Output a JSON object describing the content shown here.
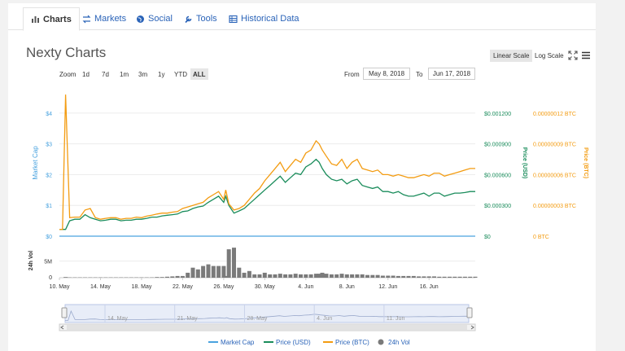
{
  "tabs": [
    {
      "label": "Charts",
      "icon": "bar-chart-icon",
      "active": true
    },
    {
      "label": "Markets",
      "icon": "exchange-arrows-icon",
      "active": false
    },
    {
      "label": "Social",
      "icon": "globe-icon",
      "active": false
    },
    {
      "label": "Tools",
      "icon": "wrench-icon",
      "active": false
    },
    {
      "label": "Historical Data",
      "icon": "table-icon",
      "active": false
    }
  ],
  "title": "Nexty Charts",
  "scale": {
    "linear": "Linear Scale",
    "log": "Log Scale",
    "selected": "linear"
  },
  "zoom": {
    "label": "Zoom",
    "options": [
      "1d",
      "7d",
      "1m",
      "3m",
      "1y",
      "YTD",
      "ALL"
    ],
    "selected": "ALL"
  },
  "range": {
    "from_label": "From",
    "from": "May 8, 2018",
    "to_label": "To",
    "to": "Jun 17, 2018"
  },
  "colors": {
    "market_cap": "#4aa3df",
    "price_usd": "#1a8c5b",
    "price_btc": "#f39c12",
    "volume": "#7a7a7a",
    "link": "#2a63b8"
  },
  "chart_data": {
    "type": "line",
    "title": "Nexty Charts",
    "x_ticks": [
      "10. May",
      "14. May",
      "18. May",
      "22. May",
      "26. May",
      "30. May",
      "4. Jun",
      "8. Jun",
      "12. Jun",
      "16. Jun"
    ],
    "left_axis": {
      "label": "Market Cap",
      "ticks": [
        "$0",
        "$1",
        "$2",
        "$3",
        "$4"
      ],
      "range": [
        0,
        4.5
      ]
    },
    "usd_axis": {
      "label": "Price (USD)",
      "ticks": [
        "$0",
        "$0.000300",
        "$0.000600",
        "$0.000900",
        "$0.001200"
      ]
    },
    "btc_axis": {
      "label": "Price (BTC)",
      "ticks": [
        "0 BTC",
        "0.00000003 BTC",
        "0.00000006 BTC",
        "0.00000009 BTC",
        "0.00000012 BTC"
      ]
    },
    "vol_axis": {
      "label": "24h Vol",
      "ticks": [
        "0",
        "5M"
      ]
    },
    "navigator_ticks": [
      "14. May",
      "21. May",
      "28. May",
      "4. Jun",
      "11. Jun"
    ],
    "legend": [
      "Market Cap",
      "Price (USD)",
      "Price (BTC)",
      "24h Vol"
    ],
    "x_days": [
      0,
      0.3,
      0.6,
      1,
      1.5,
      2,
      2.5,
      3,
      3.5,
      4,
      4.5,
      5,
      5.5,
      6,
      6.5,
      7,
      7.5,
      8,
      8.5,
      9,
      9.5,
      10,
      10.5,
      11,
      11.5,
      12,
      12.5,
      13,
      13.5,
      14,
      14.5,
      15,
      15.5,
      16,
      16.2,
      16.5,
      17,
      17.5,
      18,
      18.5,
      19,
      19.5,
      20,
      20.5,
      21,
      21.5,
      22,
      22.5,
      23,
      23.5,
      24,
      24.5,
      25,
      25.3,
      25.6,
      26,
      26.5,
      27,
      27.5,
      28,
      28.5,
      29,
      29.5,
      30,
      30.5,
      31,
      31.5,
      32,
      32.5,
      33,
      33.5,
      34,
      34.5,
      35,
      35.5,
      36,
      36.5,
      37,
      37.5,
      38,
      38.5,
      39,
      39.5,
      40,
      40.5
    ],
    "price_btc_scaled": [
      0.22,
      0.22,
      4.6,
      0.6,
      0.62,
      0.62,
      0.85,
      0.9,
      0.6,
      0.55,
      0.58,
      0.6,
      0.6,
      0.55,
      0.58,
      0.58,
      0.62,
      0.6,
      0.65,
      0.68,
      0.72,
      0.75,
      0.75,
      0.78,
      0.8,
      0.9,
      0.95,
      1.0,
      1.05,
      1.1,
      1.25,
      1.35,
      1.45,
      1.2,
      1.5,
      1.05,
      0.85,
      0.9,
      1.0,
      1.2,
      1.4,
      1.55,
      1.8,
      2.0,
      2.2,
      2.4,
      2.1,
      2.3,
      2.5,
      2.4,
      2.7,
      2.8,
      3.1,
      3.0,
      2.8,
      2.6,
      2.35,
      2.3,
      2.5,
      2.2,
      2.4,
      2.5,
      2.2,
      2.15,
      2.1,
      2.15,
      2.0,
      2.0,
      1.95,
      2.0,
      1.95,
      1.9,
      1.9,
      1.95,
      2.0,
      1.95,
      2.05,
      2.05,
      1.95,
      2.0,
      2.05,
      2.1,
      2.15,
      2.2,
      2.2
    ],
    "price_usd_scaled": [
      0.22,
      0.22,
      0.22,
      0.5,
      0.55,
      0.55,
      0.7,
      0.6,
      0.55,
      0.5,
      0.52,
      0.55,
      0.55,
      0.5,
      0.52,
      0.52,
      0.55,
      0.55,
      0.58,
      0.62,
      0.62,
      0.66,
      0.68,
      0.7,
      0.72,
      0.8,
      0.82,
      0.9,
      0.95,
      0.98,
      1.1,
      1.2,
      1.3,
      1.1,
      1.3,
      1.0,
      0.75,
      0.82,
      0.9,
      1.05,
      1.2,
      1.35,
      1.5,
      1.65,
      1.8,
      1.95,
      1.75,
      1.9,
      2.05,
      2.0,
      2.25,
      2.35,
      2.5,
      2.4,
      2.2,
      2.0,
      1.85,
      1.8,
      1.85,
      1.7,
      1.8,
      1.85,
      1.65,
      1.6,
      1.55,
      1.6,
      1.45,
      1.45,
      1.4,
      1.45,
      1.35,
      1.3,
      1.3,
      1.35,
      1.4,
      1.3,
      1.4,
      1.4,
      1.3,
      1.35,
      1.4,
      1.4,
      1.42,
      1.45,
      1.45
    ],
    "market_cap": [
      0,
      0,
      0,
      0,
      0,
      0,
      0,
      0,
      0,
      0,
      0,
      0,
      0,
      0,
      0,
      0,
      0,
      0,
      0,
      0,
      0,
      0,
      0,
      0,
      0,
      0,
      0,
      0,
      0,
      0,
      0,
      0,
      0,
      0,
      0,
      0,
      0,
      0,
      0,
      0,
      0,
      0,
      0,
      0,
      0,
      0,
      0,
      0,
      0,
      0,
      0,
      0,
      0,
      0,
      0,
      0,
      0,
      0,
      0,
      0,
      0,
      0,
      0,
      0,
      0,
      0,
      0,
      0,
      0,
      0,
      0,
      0,
      0,
      0,
      0,
      0,
      0,
      0,
      0,
      0,
      0,
      0,
      0,
      0,
      0
    ],
    "volume_millions": [
      0,
      0,
      0.2,
      0.1,
      0.1,
      0.1,
      0.1,
      0.1,
      0.1,
      0.1,
      0.1,
      0.1,
      0.1,
      0.1,
      0.1,
      0.1,
      0.1,
      0.1,
      0.1,
      0.1,
      0.2,
      0.2,
      0.3,
      0.4,
      0.5,
      0.5,
      1.5,
      3.0,
      2.5,
      3.5,
      4.0,
      3.5,
      3.5,
      3.5,
      0.5,
      8.5,
      9.0,
      3.0,
      1.5,
      2.0,
      1.0,
      1.0,
      1.5,
      1.0,
      1.0,
      1.2,
      1.0,
      1.0,
      1.2,
      1.0,
      1.0,
      1.0,
      1.2,
      1.2,
      1.5,
      1.2,
      1.0,
      1.0,
      1.2,
      1.0,
      1.0,
      1.0,
      1.0,
      0.8,
      0.8,
      0.8,
      0.6,
      0.6,
      0.6,
      0.5,
      0.5,
      0.5,
      0.5,
      0.4,
      0.4,
      0.4,
      0.4,
      0.3,
      0.3,
      0.3,
      0.3,
      0.3,
      0.3,
      0.3,
      0.3
    ]
  }
}
